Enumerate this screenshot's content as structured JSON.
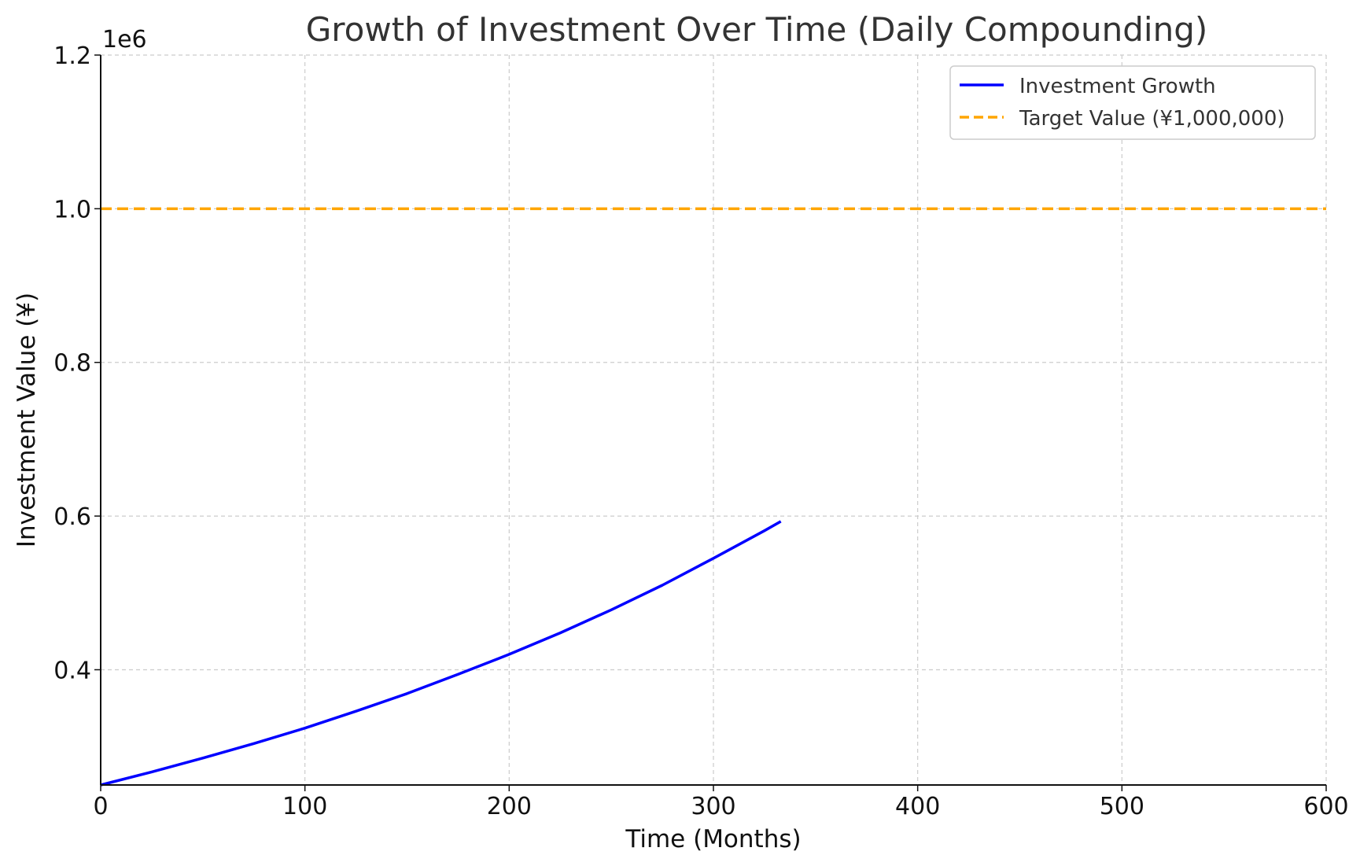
{
  "chart_data": {
    "type": "line",
    "title": "Growth of Investment Over Time (Daily Compounding)",
    "xlabel": "Time (Months)",
    "ylabel": "Investment Value (¥)",
    "y_multiplier_label": "1e6",
    "xlim": [
      0,
      600
    ],
    "ylim": [
      0.25,
      1.2
    ],
    "x_ticks": [
      0,
      100,
      200,
      300,
      400,
      500,
      600
    ],
    "x_tick_labels": [
      "0",
      "100",
      "200",
      "300",
      "400",
      "500",
      "600"
    ],
    "y_ticks": [
      0.4,
      0.6,
      0.8,
      1.0,
      1.2
    ],
    "y_tick_labels": [
      "0.4",
      "0.6",
      "0.8",
      "1.0",
      "1.2"
    ],
    "grid": true,
    "legend_position": "top-right",
    "series": [
      {
        "name": "Investment Growth",
        "color": "#0000ff",
        "style": "solid",
        "x": [
          0,
          25,
          50,
          75,
          100,
          125,
          150,
          175,
          200,
          225,
          250,
          275,
          300,
          325,
          333
        ],
        "y": [
          0.25,
          0.267,
          0.285,
          0.304,
          0.324,
          0.346,
          0.369,
          0.394,
          0.42,
          0.448,
          0.478,
          0.51,
          0.545,
          0.581,
          0.593
        ]
      },
      {
        "name": "Target Value (¥1,000,000)",
        "color": "#ffa500",
        "style": "dashed",
        "x": [
          0,
          600
        ],
        "y": [
          1.0,
          1.0
        ]
      }
    ]
  }
}
